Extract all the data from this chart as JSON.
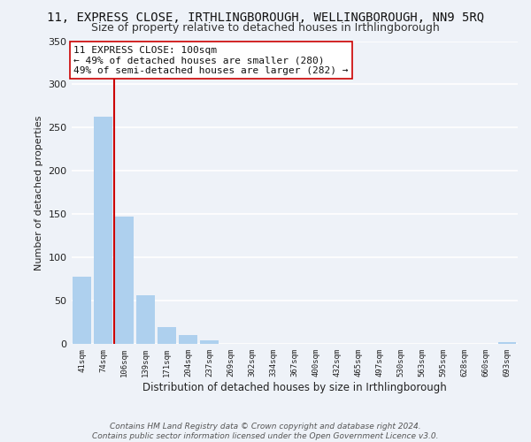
{
  "title": "11, EXPRESS CLOSE, IRTHLINGBOROUGH, WELLINGBOROUGH, NN9 5RQ",
  "subtitle": "Size of property relative to detached houses in Irthlingborough",
  "xlabel": "Distribution of detached houses by size in Irthlingborough",
  "ylabel": "Number of detached properties",
  "footer_line1": "Contains HM Land Registry data © Crown copyright and database right 2024.",
  "footer_line2": "Contains public sector information licensed under the Open Government Licence v3.0.",
  "bar_labels": [
    "41sqm",
    "74sqm",
    "106sqm",
    "139sqm",
    "171sqm",
    "204sqm",
    "237sqm",
    "269sqm",
    "302sqm",
    "334sqm",
    "367sqm",
    "400sqm",
    "432sqm",
    "465sqm",
    "497sqm",
    "530sqm",
    "563sqm",
    "595sqm",
    "628sqm",
    "660sqm",
    "693sqm"
  ],
  "bar_values": [
    78,
    263,
    147,
    57,
    20,
    11,
    4,
    0,
    0,
    0,
    0,
    0,
    0,
    0,
    0,
    0,
    0,
    0,
    0,
    0,
    2
  ],
  "bar_color": "#aed0ee",
  "annotation_line1": "11 EXPRESS CLOSE: 100sqm",
  "annotation_line2": "← 49% of detached houses are smaller (280)",
  "annotation_line3": "49% of semi-detached houses are larger (282) →",
  "vline_index": 1,
  "vline_color": "#cc0000",
  "ylim": [
    0,
    350
  ],
  "yticks": [
    0,
    50,
    100,
    150,
    200,
    250,
    300,
    350
  ],
  "bg_color": "#eef2f8",
  "grid_color": "#ffffff",
  "title_fontsize": 10,
  "subtitle_fontsize": 9,
  "annotation_fontsize": 8,
  "footer_fontsize": 6.5
}
